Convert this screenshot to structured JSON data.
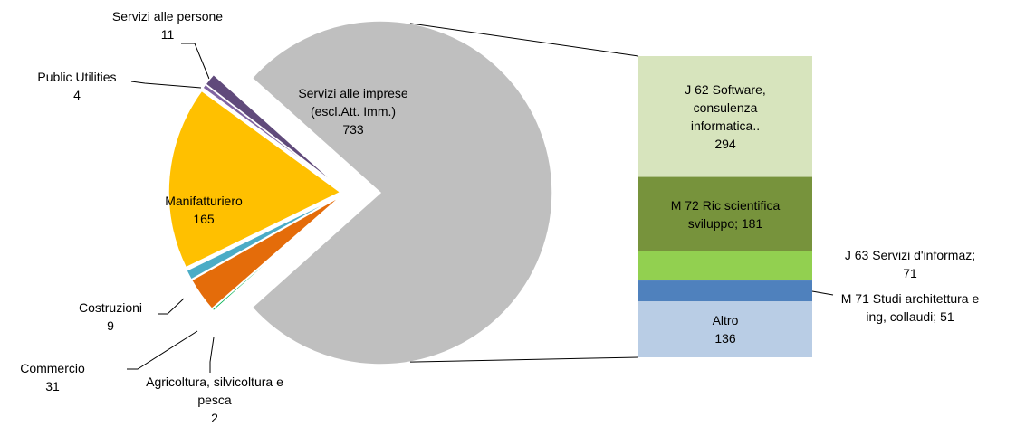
{
  "chart_data": {
    "type": "bar_of_pie",
    "categories": [
      "Servizi alle imprese (escl.Att. Imm.)",
      "Agricoltura, silvicoltura e pesca",
      "Commercio",
      "Costruzioni",
      "Manifatturiero",
      "Public Utilities",
      "Servizi alle persone"
    ],
    "values": [
      733,
      2,
      31,
      9,
      165,
      4,
      11
    ],
    "colors": [
      "#bfbfbf",
      "#00b050",
      "#e46c0a",
      "#4bacc6",
      "#ffc000",
      "#8064a2",
      "#604a7b"
    ],
    "breakdown": {
      "categories": [
        "J 62 Software, consulenza informatica..",
        "M 72 Ric scientifica sviluppo;",
        "J 63 Servizi d'informaz;",
        "M 71 Studi architettura e ing, collaudi;",
        "Altro"
      ],
      "values": [
        294,
        181,
        71,
        51,
        136
      ],
      "colors": [
        "#d7e4bd",
        "#77933c",
        "#92d050",
        "#4f81bd",
        "#b9cde5"
      ]
    }
  }
}
